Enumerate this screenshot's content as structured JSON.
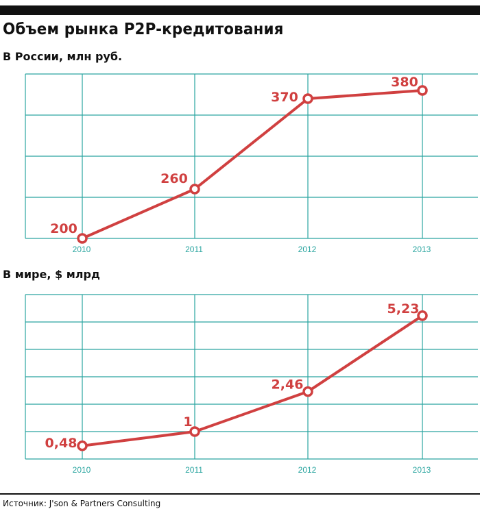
{
  "title": "Объем рынка P2P-кредитования",
  "source": "Источник:  J'son & Partners Consulting",
  "colors": {
    "line": "#d04040",
    "grid": "#2aa5a0",
    "tick": "#2aa5a0",
    "rule": "#111111"
  },
  "chart_data": [
    {
      "type": "line",
      "title": "В России, млн руб.",
      "categories": [
        "2010",
        "2011",
        "2012",
        "2013"
      ],
      "series": [
        {
          "values": [
            200,
            260,
            370,
            380
          ]
        }
      ],
      "data_labels": [
        "200",
        "260",
        "370",
        "380"
      ],
      "ylim": [
        200,
        400
      ],
      "grid": true,
      "legend": "none"
    },
    {
      "type": "line",
      "title": "В мире, $ млрд",
      "categories": [
        "2010",
        "2011",
        "2012",
        "2013"
      ],
      "series": [
        {
          "values": [
            0.48,
            1,
            2.46,
            5.23
          ]
        }
      ],
      "data_labels": [
        "0,48",
        "1",
        "2,46",
        "5,23"
      ],
      "ylim": [
        0,
        6
      ],
      "grid": true,
      "legend": "none"
    }
  ]
}
